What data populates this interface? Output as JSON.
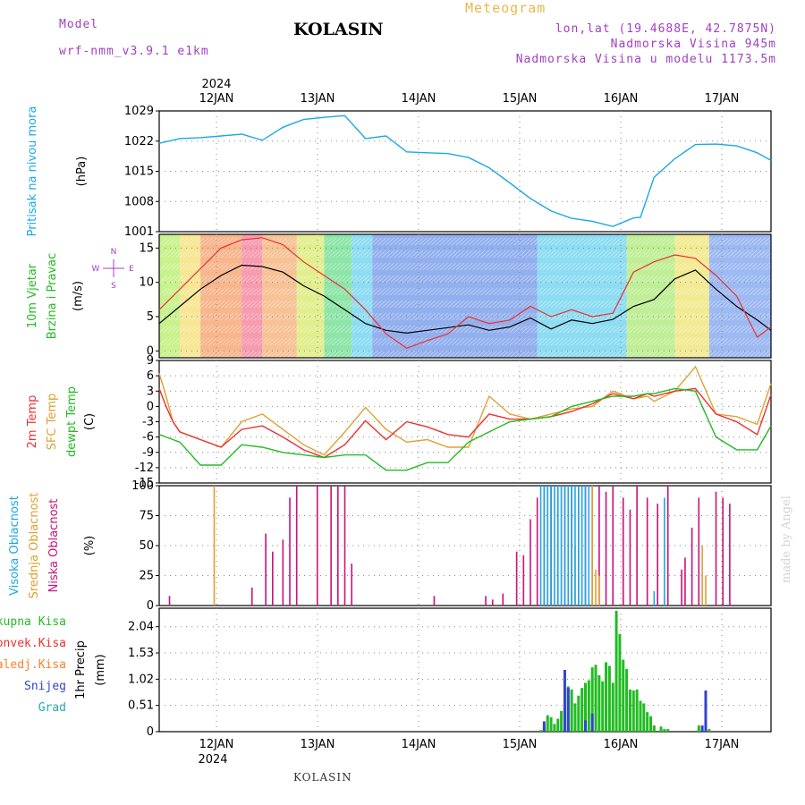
{
  "header": {
    "station": "KOLASIN",
    "meteogram": "Meteogram",
    "model_label": "Model",
    "model_version": "wrf-nmm_v3.9.1 e1km",
    "lonlat": "lon,lat (19.4688E, 42.7875N)",
    "altitude": "Nadmorska Visina 945m",
    "model_altitude": "Nadmorska Visina u modelu 1173.5m",
    "year": "2024",
    "footer_station": "KOLASIN",
    "credit": "made by Angel"
  },
  "time_axis": {
    "ticks": [
      "12JAN",
      "13JAN",
      "14JAN",
      "15JAN",
      "16JAN",
      "17JAN"
    ],
    "start": "11JAN 14UTC",
    "end": "17JAN 12UTC"
  },
  "colors": {
    "pressure": "#1ca7e6",
    "temp2m": "#ee3030",
    "sfc_temp": "#e0a030",
    "dewpoint": "#22bb22",
    "wind_speed_black": "#000000",
    "wind_gust": "#ee3030",
    "high_cloud": "#1ca7e6",
    "mid_cloud": "#e0a030",
    "low_cloud": "#cc1177",
    "total_precip": "#22bb22",
    "convective": "#ee3030",
    "freezing": "#ff7f2a",
    "snow": "#3344cc",
    "hail": "#22aaaa",
    "title_purple": "#a040c0"
  },
  "chart_data": [
    {
      "type": "line",
      "panel": "pressure",
      "ylabel": [
        "Pritisak na nivou mora",
        "(hPa)"
      ],
      "yticks": [
        1001,
        1008,
        1015,
        1022,
        1029
      ],
      "ylim": [
        1001,
        1029
      ],
      "grid": true,
      "series": [
        {
          "color": "#1ca7e6",
          "x": [
            0,
            6,
            12,
            18,
            24,
            30,
            36,
            42,
            48,
            54,
            60,
            66,
            72,
            78,
            84,
            90,
            96,
            102,
            108,
            114,
            120,
            126,
            132,
            138,
            140,
            144,
            150,
            156,
            162,
            168,
            174,
            178
          ],
          "y": [
            1021.5,
            1022.6,
            1022.8,
            1023.2,
            1023.6,
            1022.2,
            1025.2,
            1027.0,
            1027.5,
            1027.9,
            1022.6,
            1023.2,
            1019.5,
            1019.3,
            1019.1,
            1018.2,
            1015.8,
            1012.3,
            1008.7,
            1005.8,
            1004.1,
            1003.4,
            1002.2,
            1004.2,
            1004.3,
            1013.6,
            1017.9,
            1021.2,
            1021.3,
            1020.9,
            1019.3,
            1017.5
          ]
        }
      ]
    },
    {
      "type": "line",
      "panel": "wind",
      "ylabel": [
        "10m Vjetar",
        "Brzina i Pravac",
        "(m/s)"
      ],
      "direction_legend": [
        "N",
        "W",
        "E",
        "S"
      ],
      "yticks": [
        0,
        5,
        10,
        15
      ],
      "ylim": [
        -1,
        17
      ],
      "grid": true,
      "series": [
        {
          "color": "#000000",
          "x": [
            0,
            6,
            12,
            18,
            24,
            30,
            36,
            42,
            48,
            54,
            60,
            66,
            72,
            78,
            84,
            90,
            96,
            102,
            108,
            114,
            120,
            126,
            132,
            138,
            144,
            150,
            156,
            162,
            168,
            174,
            178
          ],
          "y": [
            4,
            6.5,
            9,
            11,
            12.5,
            12.3,
            11.5,
            9.5,
            8,
            6,
            4,
            3,
            2.6,
            3,
            3.4,
            3.8,
            3,
            3.5,
            4.8,
            3.2,
            4.5,
            4,
            4.6,
            6.5,
            7.5,
            10.5,
            11.8,
            9,
            6.5,
            4.5,
            3
          ]
        },
        {
          "color": "#ee3030",
          "x": [
            0,
            6,
            12,
            18,
            24,
            30,
            36,
            42,
            48,
            54,
            60,
            66,
            72,
            78,
            84,
            90,
            96,
            102,
            108,
            114,
            120,
            126,
            132,
            138,
            144,
            150,
            156,
            162,
            168,
            174,
            178
          ],
          "y": [
            6,
            9,
            12,
            15,
            16.2,
            16.5,
            15.5,
            13,
            11,
            9,
            6,
            2.5,
            0.4,
            1.5,
            2.5,
            5,
            4,
            4.5,
            6.5,
            5,
            6,
            5,
            5.5,
            11.5,
            13,
            14,
            13.5,
            11,
            8,
            2,
            3.5
          ]
        }
      ]
    },
    {
      "type": "line",
      "panel": "temperature",
      "ylabel": [
        "2m Temp",
        "SFC Temp",
        "dewpt Temp",
        "(C)"
      ],
      "yticks": [
        -15,
        -12,
        -9,
        -6,
        -3,
        0,
        3,
        6,
        9
      ],
      "ylim": [
        -15,
        9
      ],
      "grid": true,
      "series": [
        {
          "color": "#e0a030",
          "x": [
            0,
            2,
            4,
            6,
            12,
            18,
            24,
            30,
            36,
            42,
            48,
            54,
            60,
            66,
            72,
            78,
            84,
            90,
            96,
            102,
            108,
            114,
            120,
            126,
            132,
            138,
            142,
            144,
            150,
            156,
            162,
            168,
            174,
            178
          ],
          "y": [
            6.5,
            2,
            -3,
            -5,
            -6.5,
            -8,
            -3,
            -1.5,
            -4.5,
            -7.5,
            -9.5,
            -5,
            -0.2,
            -4.5,
            -7,
            -6.5,
            -8,
            -8,
            2,
            -1.5,
            -2.5,
            -1.5,
            -0.5,
            0,
            3,
            1.5,
            2,
            1,
            3,
            7.8,
            -1.5,
            -2,
            -3.5,
            4.5
          ]
        },
        {
          "color": "#ee3030",
          "x": [
            0,
            2,
            4,
            6,
            12,
            18,
            24,
            30,
            36,
            42,
            48,
            54,
            60,
            66,
            72,
            78,
            84,
            90,
            96,
            102,
            108,
            114,
            120,
            126,
            132,
            138,
            142,
            144,
            150,
            156,
            162,
            168,
            174,
            178
          ],
          "y": [
            3.5,
            0,
            -3,
            -5,
            -6.5,
            -8,
            -4.5,
            -3.8,
            -6,
            -8.5,
            -10,
            -7.5,
            -2.8,
            -6.5,
            -3,
            -4,
            -5.5,
            -6,
            -1.5,
            -2.5,
            -2.5,
            -2,
            -1,
            0.5,
            2.5,
            1.5,
            2.5,
            2,
            3,
            3.5,
            -1.5,
            -3,
            -5.5,
            2.3
          ]
        },
        {
          "color": "#22bb22",
          "x": [
            0,
            2,
            4,
            6,
            12,
            18,
            24,
            30,
            36,
            42,
            48,
            54,
            60,
            66,
            72,
            78,
            84,
            90,
            96,
            102,
            108,
            114,
            120,
            126,
            132,
            138,
            142,
            144,
            150,
            156,
            162,
            168,
            174,
            178
          ],
          "y": [
            -5.5,
            -6,
            -6.5,
            -7,
            -11.5,
            -11.5,
            -7.5,
            -8,
            -9,
            -9.5,
            -10,
            -9.5,
            -9.5,
            -12.5,
            -12.5,
            -11,
            -11,
            -7,
            -5,
            -3,
            -2.5,
            -2,
            0,
            1,
            2,
            2,
            2.5,
            2.5,
            3.5,
            3,
            -6,
            -8.5,
            -8.5,
            -3.8
          ]
        }
      ]
    },
    {
      "type": "bar",
      "panel": "clouds",
      "ylabel": [
        "Visoka Oblacnost",
        "Srednja Oblacnost",
        "Niska Oblacnost",
        "(%)"
      ],
      "yticks": [
        0,
        25,
        50,
        75,
        100
      ],
      "ylim": [
        0,
        100
      ],
      "grid": true,
      "series": [
        {
          "color": "#cc1177",
          "x": [
            3,
            27,
            31,
            33,
            36,
            38,
            40,
            46,
            50,
            52,
            54,
            56,
            80,
            95,
            97,
            100,
            104,
            106,
            108,
            110,
            112,
            114,
            116,
            118,
            120,
            122,
            124,
            126,
            128,
            130,
            132,
            135,
            137,
            139,
            142,
            145,
            148,
            152,
            153,
            155,
            157,
            162,
            164,
            166
          ],
          "y": [
            8,
            15,
            60,
            45,
            55,
            90,
            100,
            100,
            100,
            100,
            100,
            35,
            8,
            8,
            5,
            10,
            45,
            42,
            72,
            90,
            100,
            100,
            100,
            100,
            100,
            100,
            100,
            100,
            100,
            95,
            100,
            90,
            80,
            100,
            90,
            85,
            100,
            30,
            40,
            65,
            90,
            95,
            90,
            85
          ]
        },
        {
          "color": "#e0a030",
          "x": [
            16,
            113,
            117,
            121,
            126,
            127,
            128,
            158,
            159
          ],
          "y": [
            100,
            100,
            100,
            50,
            100,
            30,
            25,
            50,
            25
          ]
        },
        {
          "color": "#1ca7e6",
          "x": [
            111,
            112,
            113,
            114,
            115,
            116,
            117,
            118,
            119,
            120,
            121,
            122,
            123,
            124,
            125,
            144,
            147
          ],
          "y": [
            100,
            100,
            100,
            100,
            100,
            100,
            100,
            100,
            100,
            100,
            100,
            100,
            100,
            100,
            100,
            12,
            90
          ]
        }
      ]
    },
    {
      "type": "bar",
      "panel": "precip",
      "ylabel": [
        "1hr Precip",
        "(mm)"
      ],
      "legend": [
        "Ukupna Kisa",
        "Konvek.Kisa",
        "Zaledj.Kisa",
        "Snijeg",
        "Grad"
      ],
      "yticks": [
        0,
        0.51,
        1.02,
        1.53,
        2.04
      ],
      "ylim": [
        0,
        2.4
      ],
      "grid": true,
      "series": [
        {
          "color": "#22bb22",
          "x": [
            111,
            112,
            113,
            114,
            115,
            116,
            117,
            118,
            119,
            120,
            121,
            122,
            123,
            124,
            125,
            126,
            127,
            128,
            129,
            130,
            131,
            132,
            133,
            134,
            135,
            136,
            137,
            138,
            139,
            140,
            141,
            142,
            143,
            144,
            146,
            147,
            148,
            157,
            158,
            159,
            160
          ],
          "y": [
            0.03,
            0.1,
            0.32,
            0.28,
            0.15,
            0.25,
            0.4,
            0.5,
            0.88,
            0.82,
            0.55,
            0.7,
            0.85,
            0.95,
            1.0,
            1.25,
            1.3,
            1.1,
            0.98,
            1.35,
            1.28,
            0.95,
            2.35,
            1.9,
            1.4,
            1.22,
            0.82,
            0.8,
            0.82,
            0.6,
            0.55,
            0.38,
            0.3,
            0.12,
            0.1,
            0.05,
            0.05,
            0.12,
            0.03,
            0.12,
            0.05
          ]
        },
        {
          "color": "#3344cc",
          "x": [
            112,
            118,
            119,
            124,
            126,
            158,
            159
          ],
          "y": [
            0.2,
            1.2,
            0.85,
            0.22,
            0.35,
            0.12,
            0.8
          ]
        }
      ]
    }
  ]
}
